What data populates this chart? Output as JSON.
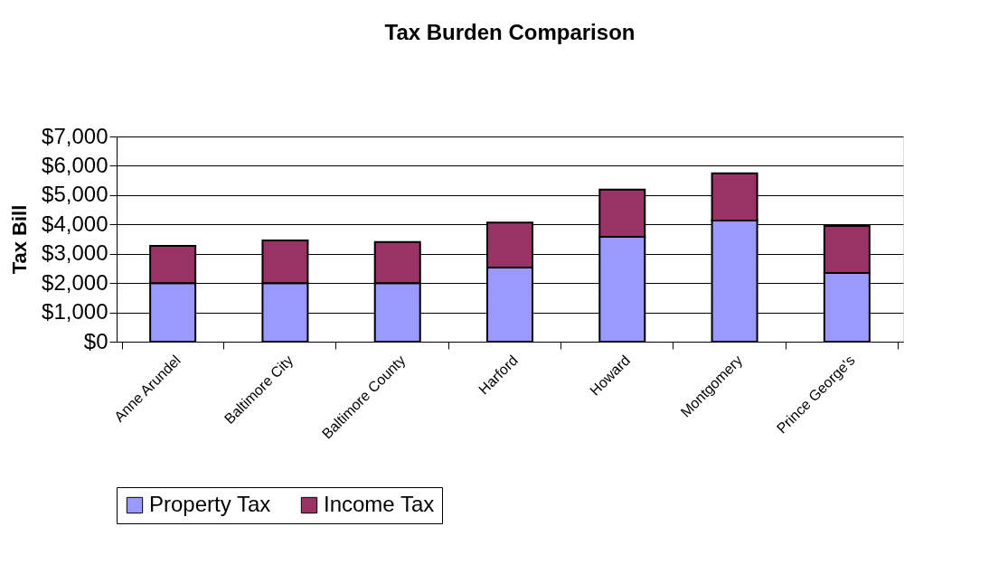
{
  "chart_data": {
    "type": "bar",
    "title": "Tax Burden Comparison",
    "ylabel": "Tax Bill",
    "stacked": true,
    "categories": [
      "Anne Arundel",
      "Baltimore City",
      "Baltimore County",
      "Harford",
      "Howard",
      "Montgomery",
      "Prince George's"
    ],
    "series": [
      {
        "name": "Property Tax",
        "color": "#9999ff",
        "values": [
          2000,
          2000,
          2000,
          2530,
          3580,
          4130,
          2340
        ]
      },
      {
        "name": "Income Tax",
        "color": "#993366",
        "values": [
          1270,
          1450,
          1400,
          1530,
          1610,
          1610,
          1610
        ]
      }
    ],
    "ylim": [
      0,
      7000
    ],
    "yticks": [
      {
        "value": 0,
        "label": "$0"
      },
      {
        "value": 1000,
        "label": "$1,000"
      },
      {
        "value": 2000,
        "label": "$2,000"
      },
      {
        "value": 3000,
        "label": "$3,000"
      },
      {
        "value": 4000,
        "label": "$4,000"
      },
      {
        "value": 5000,
        "label": "$5,000"
      },
      {
        "value": 6000,
        "label": "$6,000"
      },
      {
        "value": 7000,
        "label": "$7,000"
      }
    ],
    "grid": "y",
    "legend": "bottom"
  }
}
